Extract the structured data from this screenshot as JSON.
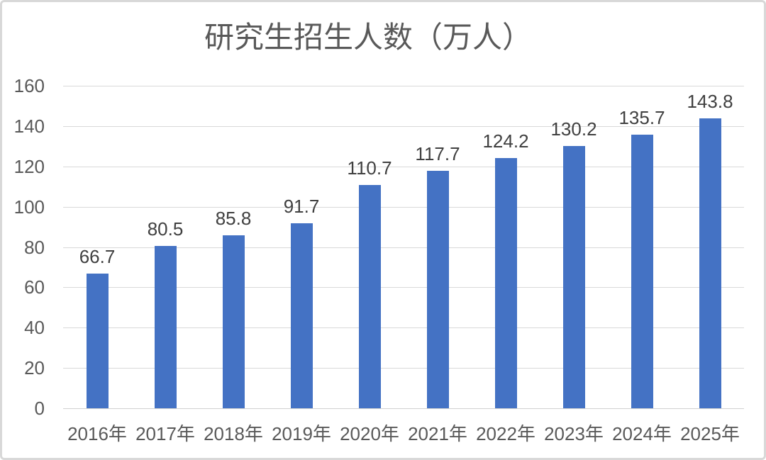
{
  "chart_data": {
    "type": "bar",
    "title": "研究生招生人数（万人）",
    "categories": [
      "2016年",
      "2017年",
      "2018年",
      "2019年",
      "2020年",
      "2021年",
      "2022年",
      "2023年",
      "2024年",
      "2025年"
    ],
    "values": [
      66.7,
      80.5,
      85.8,
      91.7,
      110.7,
      117.7,
      124.2,
      130.2,
      135.7,
      143.8
    ],
    "data_labels": [
      "66.7",
      "80.5",
      "85.8",
      "91.7",
      "110.7",
      "117.7",
      "124.2",
      "130.2",
      "135.7",
      "143.8"
    ],
    "y_ticks": [
      0,
      20,
      40,
      60,
      80,
      100,
      120,
      140,
      160
    ],
    "ylim": [
      0,
      160
    ],
    "xlabel": "",
    "ylabel": "",
    "grid": true,
    "legend_position": "none",
    "bar_color": "#4472c4",
    "gridline_color": "#d9d9d9",
    "axis_label_color": "#595959",
    "data_label_color": "#404040",
    "title_color": "#595959",
    "frame_border_color": "#d8d8d8"
  }
}
